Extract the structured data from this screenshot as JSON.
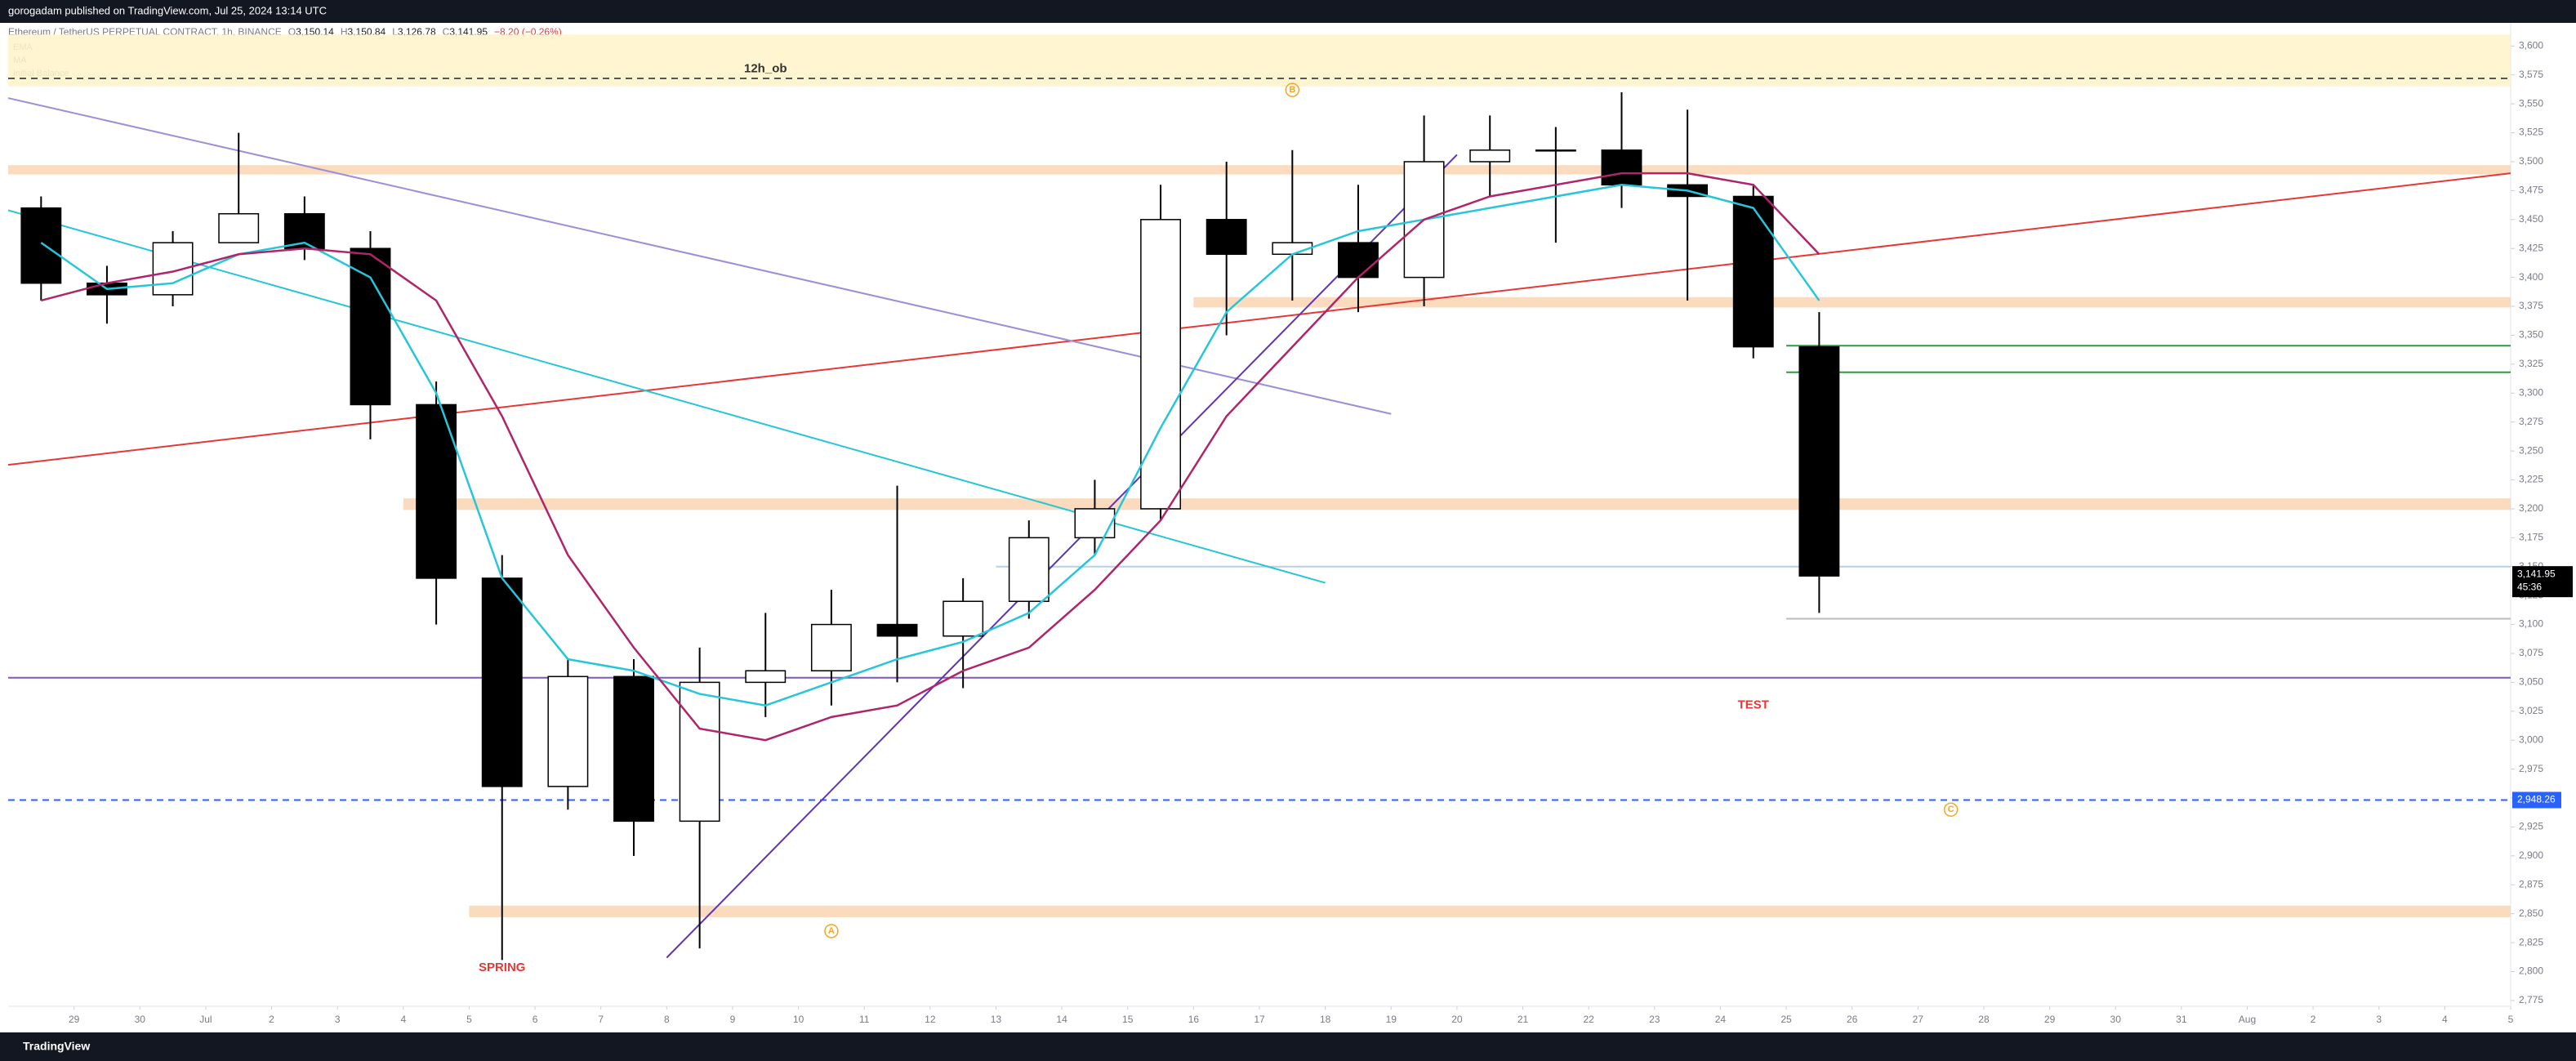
{
  "header": "gorogadam published on TradingView.com, Jul 25, 2024 13:14 UTC",
  "footer": "TradingView",
  "chart_data": {
    "type": "candlestick",
    "symbol": "Ethereum / TetherUS PERPETUAL CONTRACT, 1h, BINANCE",
    "quote": [
      {
        "key": "O",
        "text": "3,150.14"
      },
      {
        "key": "H",
        "text": "3,150.84"
      },
      {
        "key": "L",
        "text": "3,126.78"
      },
      {
        "key": "C",
        "text": "3,141.95"
      }
    ],
    "change": "−8.20 (−0.26%)",
    "x": [
      "Jun 28",
      "Jun 29",
      "Jun 30",
      "Jul 1",
      "Jul 2",
      "Jul 3",
      "Jul 4",
      "Jul 5",
      "Jul 6",
      "Jul 7",
      "Jul 8",
      "Jul 9",
      "Jul 10",
      "Jul 11",
      "Jul 12",
      "Jul 13",
      "Jul 14",
      "Jul 15",
      "Jul 16",
      "Jul 17",
      "Jul 18",
      "Jul 19",
      "Jul 20",
      "Jul 21",
      "Jul 22",
      "Jul 23",
      "Jul 24",
      "Jul 25"
    ],
    "open": [
      3460,
      3395,
      3385,
      3430,
      3455,
      3425,
      3290,
      3140,
      2960,
      3055,
      2930,
      3050,
      3060,
      3100,
      3090,
      3120,
      3175,
      3200,
      3450,
      3420,
      3430,
      3400,
      3500,
      3510,
      3510,
      3480,
      3470,
      3340
    ],
    "high": [
      3470,
      3410,
      3440,
      3525,
      3470,
      3440,
      3310,
      3160,
      3070,
      3070,
      3080,
      3110,
      3130,
      3220,
      3140,
      3190,
      3225,
      3480,
      3500,
      3510,
      3480,
      3540,
      3540,
      3530,
      3560,
      3545,
      3480,
      3370
    ],
    "low": [
      3380,
      3360,
      3375,
      3430,
      3415,
      3260,
      3100,
      2810,
      2940,
      2900,
      2820,
      3020,
      3030,
      3050,
      3045,
      3105,
      3160,
      3190,
      3350,
      3380,
      3370,
      3375,
      3470,
      3430,
      3460,
      3380,
      3330,
      3110
    ],
    "close": [
      3395,
      3385,
      3430,
      3455,
      3425,
      3290,
      3140,
      2960,
      3055,
      2930,
      3050,
      3060,
      3100,
      3090,
      3120,
      3175,
      3200,
      3450,
      3420,
      3430,
      3400,
      3500,
      3510,
      3510,
      3480,
      3470,
      3340,
      3141.95
    ],
    "up_color": "#ffffff",
    "down_color": "#000000",
    "series": [
      {
        "name": "EMA",
        "color": "#26c6da",
        "values": [
          3430,
          3390,
          3395,
          3420,
          3430,
          3400,
          3300,
          3140,
          3070,
          3060,
          3040,
          3030,
          3050,
          3070,
          3085,
          3110,
          3160,
          3270,
          3370,
          3420,
          3440,
          3450,
          3460,
          3470,
          3480,
          3475,
          3460,
          3380
        ]
      },
      {
        "name": "MA",
        "color": "#b0246a",
        "values": [
          3380,
          3395,
          3405,
          3420,
          3425,
          3420,
          3380,
          3280,
          3160,
          3080,
          3010,
          3000,
          3020,
          3030,
          3060,
          3080,
          3130,
          3190,
          3280,
          3340,
          3400,
          3450,
          3470,
          3480,
          3490,
          3490,
          3480,
          3420
        ]
      }
    ],
    "extra_legend": [
      "Initial Balance"
    ],
    "xlim": [
      "Jun 28",
      "Aug 5"
    ],
    "xticks": [
      {
        "value": "Jun 29",
        "label": "29"
      },
      {
        "value": "Jun 30",
        "label": "30"
      },
      {
        "value": "Jul 1",
        "label": "Jul"
      },
      {
        "value": "Jul 2",
        "label": "2"
      },
      {
        "value": "Jul 3",
        "label": "3"
      },
      {
        "value": "Jul 4",
        "label": "4"
      },
      {
        "value": "Jul 5",
        "label": "5"
      },
      {
        "value": "Jul 6",
        "label": "6"
      },
      {
        "value": "Jul 7",
        "label": "7"
      },
      {
        "value": "Jul 8",
        "label": "8"
      },
      {
        "value": "Jul 9",
        "label": "9"
      },
      {
        "value": "Jul 10",
        "label": "10"
      },
      {
        "value": "Jul 11",
        "label": "11"
      },
      {
        "value": "Jul 12",
        "label": "12"
      },
      {
        "value": "Jul 13",
        "label": "13"
      },
      {
        "value": "Jul 14",
        "label": "14"
      },
      {
        "value": "Jul 15",
        "label": "15"
      },
      {
        "value": "Jul 16",
        "label": "16"
      },
      {
        "value": "Jul 17",
        "label": "17"
      },
      {
        "value": "Jul 18",
        "label": "18"
      },
      {
        "value": "Jul 19",
        "label": "19"
      },
      {
        "value": "Jul 20",
        "label": "20"
      },
      {
        "value": "Jul 21",
        "label": "21"
      },
      {
        "value": "Jul 22",
        "label": "22"
      },
      {
        "value": "Jul 23",
        "label": "23"
      },
      {
        "value": "Jul 24",
        "label": "24"
      },
      {
        "value": "Jul 25",
        "label": "25"
      },
      {
        "value": "Jul 26",
        "label": "26"
      },
      {
        "value": "Jul 27",
        "label": "27"
      },
      {
        "value": "Jul 28",
        "label": "28"
      },
      {
        "value": "Jul 29",
        "label": "29"
      },
      {
        "value": "Jul 30",
        "label": "30"
      },
      {
        "value": "Jul 31",
        "label": "31"
      },
      {
        "value": "Aug 1",
        "label": "Aug"
      },
      {
        "value": "Aug 2",
        "label": "2"
      },
      {
        "value": "Aug 3",
        "label": "3"
      },
      {
        "value": "Aug 4",
        "label": "4"
      },
      {
        "value": "Aug 5",
        "label": "5"
      }
    ],
    "ylim": [
      2770,
      3620
    ],
    "yticks": [
      {
        "value": 2775,
        "label": "2,775"
      },
      {
        "value": 2800,
        "label": "2,800"
      },
      {
        "value": 2825,
        "label": "2,825"
      },
      {
        "value": 2850,
        "label": "2,850"
      },
      {
        "value": 2875,
        "label": "2,875"
      },
      {
        "value": 2900,
        "label": "2,900"
      },
      {
        "value": 2925,
        "label": "2,925"
      },
      {
        "value": 2950,
        "label": "2,950"
      },
      {
        "value": 2975,
        "label": "2,975"
      },
      {
        "value": 3000,
        "label": "3,000"
      },
      {
        "value": 3025,
        "label": "3,025"
      },
      {
        "value": 3050,
        "label": "3,050"
      },
      {
        "value": 3075,
        "label": "3,075"
      },
      {
        "value": 3100,
        "label": "3,100"
      },
      {
        "value": 3125,
        "label": "3,125"
      },
      {
        "value": 3150,
        "label": "3,150"
      },
      {
        "value": 3175,
        "label": "3,175"
      },
      {
        "value": 3200,
        "label": "3,200"
      },
      {
        "value": 3225,
        "label": "3,225"
      },
      {
        "value": 3250,
        "label": "3,250"
      },
      {
        "value": 3275,
        "label": "3,275"
      },
      {
        "value": 3300,
        "label": "3,300"
      },
      {
        "value": 3325,
        "label": "3,325"
      },
      {
        "value": 3350,
        "label": "3,350"
      },
      {
        "value": 3375,
        "label": "3,375"
      },
      {
        "value": 3400,
        "label": "3,400"
      },
      {
        "value": 3425,
        "label": "3,425"
      },
      {
        "value": 3450,
        "label": "3,450"
      },
      {
        "value": 3475,
        "label": "3,475"
      },
      {
        "value": 3500,
        "label": "3,500"
      },
      {
        "value": 3525,
        "label": "3,525"
      },
      {
        "value": 3550,
        "label": "3,550"
      },
      {
        "value": 3575,
        "label": "3,575"
      },
      {
        "value": 3600,
        "label": "3,600"
      }
    ],
    "zones": [
      {
        "low": 3565,
        "high": 3610,
        "color": "#fff3c4"
      },
      {
        "low": 3489,
        "high": 3497,
        "color": "#f9d2ad"
      },
      {
        "low": 3374,
        "high": 3383,
        "from": "Jul 16",
        "color": "#f9d2ad"
      },
      {
        "low": 3199,
        "high": 3209,
        "from": "Jul 4",
        "color": "#f9d2ad"
      },
      {
        "low": 2847,
        "high": 2857,
        "from": "Jul 5",
        "color": "#f9d2ad"
      }
    ],
    "lines": [
      {
        "price": 3572,
        "color": "#555555",
        "dash": true
      },
      {
        "price": 3054,
        "color": "#7e57c2",
        "dash": false
      },
      {
        "price": 2948.26,
        "color": "#2962ff",
        "dash": true
      },
      {
        "price": 3341,
        "color": "#2e9b3a",
        "dash": false,
        "from": "Jul 25"
      },
      {
        "price": 3318,
        "color": "#2e9b3a",
        "dash": false,
        "from": "Jul 25"
      },
      {
        "price": 3150,
        "color": "#b7d0ea",
        "dash": false,
        "from": "Jul 13"
      },
      {
        "price": 3105,
        "color": "#bbbbbb",
        "dash": false,
        "from": "Jul 25"
      }
    ],
    "trendlines": [
      {
        "x": [
          "Jun 28",
          "Aug 5"
        ],
        "y": [
          3238,
          3490
        ],
        "color": "#e53935"
      },
      {
        "x": [
          "Jun 28",
          "Jul 19"
        ],
        "y": [
          3555,
          3282
        ],
        "color": "#9c8fd6"
      },
      {
        "x": [
          "Jun 28",
          "Jul 18"
        ],
        "y": [
          3458,
          3136
        ],
        "color": "#26c6da"
      },
      {
        "x": [
          "Jul 8",
          "Jul 20"
        ],
        "y": [
          2812,
          3506
        ],
        "color": "#5e35b1"
      }
    ],
    "annotations": [
      {
        "text": "12h_ob",
        "x": "Jul 9",
        "y": 3580,
        "color": "#333333"
      },
      {
        "text": "SPRING",
        "x": "Jul 5",
        "y": 2803,
        "color": "#e53935"
      },
      {
        "text": "TEST",
        "x": "Jul 24",
        "y": 3030,
        "color": "#e53935"
      },
      {
        "text": "A",
        "x": "Jul 10",
        "y": 2835,
        "color": "#f5a623"
      },
      {
        "text": "B",
        "x": "Jul 17",
        "y": 3562,
        "color": "#f5a623"
      },
      {
        "text": "C",
        "x": "Jul 27",
        "y": 2940,
        "color": "#f5a623"
      }
    ],
    "last_price": {
      "value": 3141.95,
      "label": "3,141.95"
    },
    "countdown": "45:36",
    "line_label": {
      "value": 2948.26,
      "label": "2,948.26"
    }
  }
}
